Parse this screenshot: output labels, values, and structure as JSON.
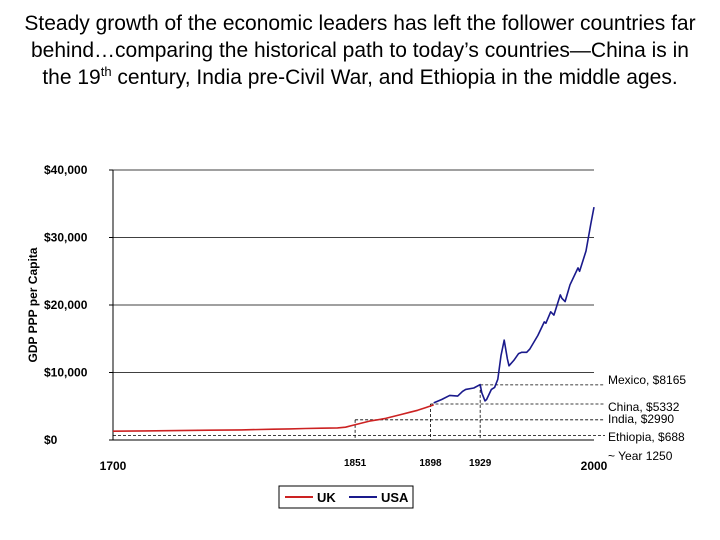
{
  "title": {
    "part1": "Steady growth of the economic leaders has left the follower countries far behind…comparing the historical path to today’s countries—China is in the 19",
    "sup": "th",
    "part2": " century, India pre-Civil War, and Ethiopia in the middle ages."
  },
  "chart_data": {
    "type": "line",
    "ylabel": "GDP PPP per Capita",
    "xlabel": "",
    "xlim": [
      1700,
      2000
    ],
    "ylim": [
      0,
      40000
    ],
    "y_ticks": [
      {
        "value": 0,
        "label": "$0"
      },
      {
        "value": 10000,
        "label": "$10,000"
      },
      {
        "value": 20000,
        "label": "$20,000"
      },
      {
        "value": 30000,
        "label": "$30,000"
      },
      {
        "value": 40000,
        "label": "$40,000"
      }
    ],
    "x_ticks": [
      {
        "value": 1700,
        "label": "1700",
        "style": "large"
      },
      {
        "value": 1851,
        "label": "1851",
        "style": "small"
      },
      {
        "value": 1898,
        "label": "1898",
        "style": "small"
      },
      {
        "value": 1929,
        "label": "1929",
        "style": "small"
      },
      {
        "value": 2000,
        "label": "2000",
        "style": "large"
      }
    ],
    "legend": {
      "position": "bottom",
      "entries": [
        "UK",
        "USA"
      ]
    },
    "series": [
      {
        "name": "UK",
        "color": "#cc2222",
        "x": [
          1700,
          1720,
          1740,
          1760,
          1780,
          1800,
          1810,
          1820,
          1830,
          1840,
          1845,
          1850,
          1855,
          1860,
          1865,
          1870,
          1875,
          1880,
          1885,
          1890,
          1895,
          1900
        ],
        "y": [
          1300,
          1350,
          1400,
          1450,
          1500,
          1600,
          1650,
          1700,
          1750,
          1800,
          1900,
          2200,
          2500,
          2800,
          3000,
          3200,
          3500,
          3800,
          4100,
          4400,
          4800,
          5200
        ]
      },
      {
        "name": "USA",
        "color": "#1a1a8c",
        "x": [
          1900,
          1905,
          1910,
          1915,
          1918,
          1920,
          1925,
          1929,
          1930,
          1932,
          1933,
          1936,
          1938,
          1940,
          1942,
          1944,
          1946,
          1947,
          1950,
          1953,
          1955,
          1958,
          1960,
          1965,
          1969,
          1970,
          1973,
          1975,
          1979,
          1980,
          1982,
          1985,
          1990,
          1991,
          1995,
          1998,
          2000
        ],
        "y": [
          5500,
          6000,
          6600,
          6500,
          7200,
          7500,
          7700,
          8200,
          7000,
          5800,
          6000,
          7500,
          7800,
          9000,
          12500,
          14800,
          12000,
          11000,
          11800,
          12800,
          13000,
          13000,
          13500,
          15500,
          17500,
          17300,
          19000,
          18500,
          21500,
          21000,
          20500,
          23000,
          25500,
          25000,
          28000,
          32000,
          34500
        ]
      }
    ],
    "reference_lines": [
      {
        "label": "Mexico, $8165",
        "value": 8165,
        "year": 1929
      },
      {
        "label": "China, $5332",
        "value": 5332,
        "year": 1898
      },
      {
        "label": "India, $2990",
        "value": 2990,
        "year": 1851
      },
      {
        "label": "Ethiopia, $688",
        "value": 688,
        "year": 1700
      },
      {
        "label": "~ Year 1250",
        "value": null,
        "year": null
      }
    ]
  }
}
